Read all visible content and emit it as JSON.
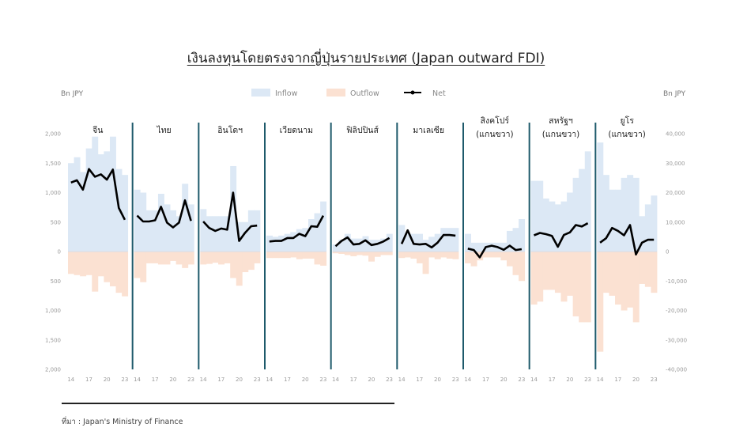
{
  "title": "เงินลงทุนโดยตรงจากญี่ปุ่นรายประเทศ (Japan outward FDI)",
  "source": "ที่มา : Japan's Ministry of Finance",
  "colors": {
    "inflow": "#dce8f5",
    "outflow": "#fbe1d2",
    "net": "#000000",
    "divider": "#1e5a6b"
  },
  "chart_data": {
    "type": "bar",
    "left_axis_unit": "Bn JPY",
    "right_axis_unit": "Bn JPY",
    "left_ticks": [
      "2,000",
      "1,500",
      "1,000",
      "500",
      "0",
      "500",
      "1,000",
      "1,500",
      "2,000"
    ],
    "right_ticks": [
      "40,000",
      "30,000",
      "20,000",
      "10,000",
      "0",
      "-10,000",
      "-20,000",
      "-30,000",
      "-40,000"
    ],
    "ylim_left": [
      -2000,
      2000
    ],
    "ylim_right": [
      -40000,
      40000
    ],
    "x_tick_labels": [
      "14",
      "17",
      "20",
      "23"
    ],
    "years": [
      2014,
      2015,
      2016,
      2017,
      2018,
      2019,
      2020,
      2021,
      2022,
      2023
    ],
    "legend": [
      {
        "label": "Inflow",
        "kind": "area"
      },
      {
        "label": "Outflow",
        "kind": "area"
      },
      {
        "label": "Net",
        "kind": "line"
      }
    ],
    "panels": [
      {
        "label": [
          "จีน"
        ],
        "axis": "left",
        "inflow": [
          1500,
          1600,
          1350,
          1750,
          1950,
          1650,
          1700,
          1950,
          1400,
          1300
        ],
        "outflow": [
          -380,
          -400,
          -420,
          -400,
          -680,
          -420,
          -520,
          -590,
          -700,
          -760
        ],
        "net": [
          1170,
          1210,
          1050,
          1400,
          1270,
          1310,
          1220,
          1390,
          740,
          540
        ]
      },
      {
        "label": [
          "ไทย"
        ],
        "axis": "left",
        "inflow": [
          1050,
          1000,
          700,
          700,
          980,
          800,
          700,
          600,
          1150,
          800
        ],
        "outflow": [
          -450,
          -520,
          -200,
          -200,
          -220,
          -220,
          -160,
          -220,
          -280,
          -220
        ],
        "net": [
          610,
          510,
          510,
          530,
          760,
          490,
          410,
          490,
          870,
          520
        ]
      },
      {
        "label": [
          "อินโดฯ"
        ],
        "axis": "left",
        "inflow": [
          720,
          600,
          600,
          600,
          600,
          1450,
          500,
          500,
          700,
          700
        ],
        "outflow": [
          -220,
          -210,
          -190,
          -220,
          -200,
          -450,
          -580,
          -350,
          -310,
          -200
        ],
        "net": [
          510,
          400,
          350,
          390,
          370,
          1000,
          180,
          320,
          430,
          440
        ]
      },
      {
        "label": [
          "เวียดนาม"
        ],
        "axis": "left",
        "inflow": [
          270,
          250,
          270,
          300,
          330,
          380,
          400,
          550,
          650,
          850
        ],
        "outflow": [
          -110,
          -110,
          -110,
          -110,
          -100,
          -130,
          -120,
          -120,
          -220,
          -240
        ],
        "net": [
          170,
          180,
          180,
          230,
          230,
          300,
          260,
          430,
          420,
          610
        ]
      },
      {
        "label": [
          "ฟิลิปปินส์"
        ],
        "axis": "left",
        "inflow": [
          120,
          200,
          300,
          220,
          220,
          260,
          200,
          200,
          220,
          300
        ],
        "outflow": [
          -30,
          -40,
          -60,
          -80,
          -60,
          -70,
          -170,
          -90,
          -60,
          -60
        ],
        "net": [
          90,
          180,
          240,
          120,
          130,
          190,
          110,
          130,
          170,
          230
        ]
      },
      {
        "label": [
          "มาเลเซีย"
        ],
        "axis": "left",
        "inflow": [
          450,
          300,
          300,
          300,
          200,
          250,
          300,
          400,
          400,
          400
        ],
        "outflow": [
          -110,
          -100,
          -120,
          -200,
          -380,
          -100,
          -130,
          -100,
          -120,
          -130
        ],
        "net": [
          130,
          360,
          130,
          120,
          130,
          70,
          150,
          280,
          280,
          270
        ]
      },
      {
        "label": [
          "สิงคโปร์",
          "(แกนขวา)"
        ],
        "axis": "right",
        "inflow": [
          6000,
          3000,
          3000,
          3000,
          3000,
          3000,
          3000,
          7000,
          8000,
          11000
        ],
        "outflow": [
          -4000,
          -5000,
          -3000,
          -2000,
          -2000,
          -2000,
          -3000,
          -5000,
          -8000,
          -10000
        ],
        "net": [
          1000,
          500,
          -2000,
          1500,
          2000,
          1500,
          600,
          2000,
          500,
          800
        ]
      },
      {
        "label": [
          "สหรัฐฯ",
          "(แกนขวา)"
        ],
        "axis": "right",
        "inflow": [
          24000,
          24000,
          18000,
          17000,
          16000,
          17000,
          20000,
          25000,
          28000,
          34000
        ],
        "outflow": [
          -18000,
          -17000,
          -13000,
          -13000,
          -14000,
          -17000,
          -15000,
          -22000,
          -24000,
          -24000
        ],
        "net": [
          5500,
          6300,
          5900,
          5300,
          1600,
          5600,
          6500,
          9000,
          8500,
          9600
        ]
      },
      {
        "label": [
          "ยูโร",
          "(แกนขวา)"
        ],
        "axis": "right",
        "inflow": [
          37000,
          26000,
          21000,
          21000,
          25000,
          26000,
          25000,
          12000,
          16000,
          19000
        ],
        "outflow": [
          -34000,
          -14000,
          -15000,
          -18000,
          -20000,
          -19000,
          -24000,
          -11000,
          -12000,
          -14000
        ],
        "net": [
          3000,
          4500,
          8000,
          7000,
          5500,
          9000,
          -1000,
          3000,
          4000,
          4000
        ]
      }
    ]
  }
}
